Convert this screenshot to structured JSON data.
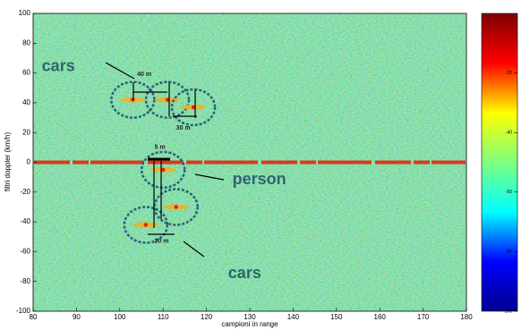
{
  "chart_data": {
    "type": "heatmap",
    "xlabel": "campioni in range",
    "ylabel": "filtri doppler (km/h)",
    "xlim": [
      80,
      180
    ],
    "xticks": [
      80,
      90,
      100,
      110,
      120,
      130,
      140,
      150,
      160,
      170,
      180
    ],
    "ylim": [
      -100,
      100
    ],
    "yticks": [
      -100,
      -80,
      -60,
      -40,
      -20,
      0,
      20,
      40,
      60,
      80,
      100
    ],
    "colorbar": {
      "clim": [
        -100,
        0
      ],
      "ticks": [
        -20,
        -40,
        -60,
        -80,
        -100
      ],
      "colors": [
        "#00008f",
        "#0000ff",
        "#00ffff",
        "#7fff7f",
        "#ffff00",
        "#ff0000",
        "#7f0000"
      ]
    },
    "clutter": {
      "y": 0,
      "color": "#d83a1a"
    },
    "targets": [
      {
        "x": 103,
        "y": 42
      },
      {
        "x": 111,
        "y": 42
      },
      {
        "x": 117,
        "y": 37
      },
      {
        "x": 110,
        "y": -5
      },
      {
        "x": 113,
        "y": -30
      },
      {
        "x": 106,
        "y": -42
      }
    ],
    "annotations": [
      {
        "text": "cars",
        "x": 82,
        "y": 64,
        "style": "big"
      },
      {
        "text": "40 m",
        "x": 104,
        "y": 59,
        "style": "small"
      },
      {
        "text": "30 m",
        "x": 113,
        "y": 23,
        "style": "small"
      },
      {
        "text": "5 m",
        "x": 108,
        "y": 10,
        "style": "small"
      },
      {
        "text": "person",
        "x": 126,
        "y": -12,
        "style": "big"
      },
      {
        "text": "20 m",
        "x": 108,
        "y": -53,
        "style": "small"
      },
      {
        "text": "cars",
        "x": 125,
        "y": -75,
        "style": "big"
      }
    ]
  }
}
